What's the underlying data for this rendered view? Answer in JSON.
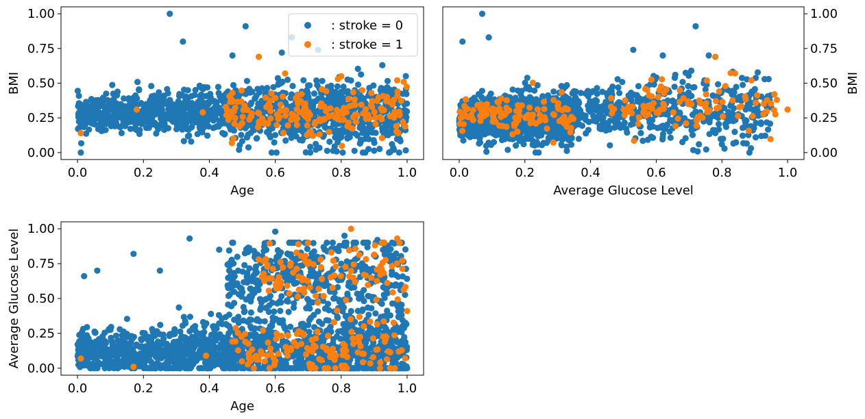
{
  "figure": {
    "legend": {
      "entries": [
        ": stroke = 0",
        ": stroke = 1"
      ]
    }
  },
  "chart_data": [
    {
      "type": "scatter",
      "xlabel": "Age",
      "ylabel": "BMI",
      "xlim": [
        -0.05,
        1.05
      ],
      "ylim": [
        -0.05,
        1.05
      ],
      "xticks": [
        "0.0",
        "0.2",
        "0.4",
        "0.6",
        "0.8",
        "1.0"
      ],
      "yticks": [
        "0.00",
        "0.25",
        "0.50",
        "0.75",
        "1.00"
      ],
      "yaxis_side": "left",
      "legend": "top-right",
      "series": [
        {
          "name": ": stroke = 0",
          "color": "#1f77b4",
          "cluster": {
            "x_range": [
              0.0,
              1.0
            ],
            "y_center": 0.28,
            "y_spread": 0.11,
            "count": 1400
          },
          "points": [
            [
              0.28,
              1.0
            ],
            [
              0.51,
              0.91
            ],
            [
              0.32,
              0.8
            ],
            [
              0.47,
              0.7
            ],
            [
              0.62,
              0.72
            ],
            [
              0.73,
              0.74
            ],
            [
              0.65,
              0.83
            ],
            [
              0.96,
              0.02
            ],
            [
              0.49,
              0.02
            ],
            [
              0.01,
              0.0
            ]
          ]
        },
        {
          "name": ": stroke = 1",
          "color": "#ff7f0e",
          "cluster": {
            "x_range": [
              0.45,
              1.0
            ],
            "y_center": 0.29,
            "y_spread": 0.08,
            "count": 180
          },
          "points": [
            [
              0.01,
              0.14
            ],
            [
              0.18,
              0.31
            ],
            [
              0.38,
              0.29
            ],
            [
              0.47,
              0.43
            ],
            [
              0.55,
              0.69
            ],
            [
              0.8,
              0.55
            ],
            [
              0.97,
              0.52
            ],
            [
              0.99,
              0.51
            ],
            [
              0.79,
              0.53
            ],
            [
              0.63,
              0.57
            ]
          ]
        }
      ]
    },
    {
      "type": "scatter",
      "xlabel": "Average Glucose Level",
      "ylabel": "BMI",
      "xlim": [
        -0.05,
        1.05
      ],
      "ylim": [
        -0.05,
        1.05
      ],
      "xticks": [
        "0.0",
        "0.2",
        "0.4",
        "0.6",
        "0.8",
        "1.0"
      ],
      "yticks": [
        "0.00",
        "0.25",
        "0.50",
        "0.75",
        "1.00"
      ],
      "yaxis_side": "right",
      "series": [
        {
          "name": ": stroke = 0",
          "color": "#1f77b4",
          "cluster": {
            "x_range": [
              0.0,
              0.35
            ],
            "y_center": 0.25,
            "y_spread": 0.12,
            "count": 1300,
            "x2_range": [
              0.35,
              0.95
            ],
            "y2_center": 0.3,
            "y2_spread": 0.12,
            "count2": 500
          },
          "points": [
            [
              0.07,
              1.0
            ],
            [
              0.72,
              0.91
            ],
            [
              0.09,
              0.83
            ],
            [
              0.01,
              0.8
            ],
            [
              0.53,
              0.74
            ],
            [
              0.62,
              0.7
            ],
            [
              0.76,
              0.7
            ],
            [
              0.8,
              0.06
            ],
            [
              0.73,
              0.06
            ]
          ]
        },
        {
          "name": ": stroke = 1",
          "color": "#ff7f0e",
          "cluster": {
            "x_range": [
              0.0,
              0.35
            ],
            "y_center": 0.27,
            "y_spread": 0.09,
            "count": 120,
            "x2_range": [
              0.45,
              0.98
            ],
            "y2_center": 0.33,
            "y2_spread": 0.09,
            "count2": 90
          },
          "points": [
            [
              1.0,
              0.31
            ],
            [
              0.96,
              0.42
            ],
            [
              0.78,
              0.69
            ],
            [
              0.84,
              0.57
            ],
            [
              0.89,
              0.52
            ],
            [
              0.61,
              0.45
            ]
          ]
        }
      ]
    },
    {
      "type": "scatter",
      "xlabel": "Age",
      "ylabel": "Average Glucose Level",
      "xlim": [
        -0.05,
        1.05
      ],
      "ylim": [
        -0.05,
        1.05
      ],
      "xticks": [
        "0.0",
        "0.2",
        "0.4",
        "0.6",
        "0.8",
        "1.0"
      ],
      "yticks": [
        "0.00",
        "0.25",
        "0.50",
        "0.75",
        "1.00"
      ],
      "yaxis_side": "left",
      "series": [
        {
          "name": ": stroke = 0",
          "color": "#1f77b4",
          "cluster": {
            "x_range": [
              0.0,
              1.0
            ],
            "y_center": 0.12,
            "y_spread": 0.13,
            "count": 1500,
            "x2_range": [
              0.45,
              1.0
            ],
            "y2_center": 0.65,
            "y2_spread": 0.16,
            "count2": 500
          },
          "points": [
            [
              0.34,
              0.93
            ],
            [
              0.6,
              0.98
            ],
            [
              0.43,
              0.85
            ],
            [
              0.17,
              0.82
            ],
            [
              0.02,
              0.66
            ],
            [
              0.06,
              0.7
            ],
            [
              0.25,
              0.7
            ],
            [
              0.81,
              0.95
            ],
            [
              0.91,
              0.92
            ]
          ]
        },
        {
          "name": ": stroke = 1",
          "color": "#ff7f0e",
          "cluster": {
            "x_range": [
              0.47,
              1.0
            ],
            "y_center": 0.13,
            "y_spread": 0.1,
            "count": 130,
            "x2_range": [
              0.55,
              1.0
            ],
            "y2_center": 0.7,
            "y2_spread": 0.12,
            "count2": 100
          },
          "points": [
            [
              0.83,
              1.0
            ],
            [
              0.01,
              0.07
            ],
            [
              0.17,
              0.01
            ],
            [
              0.39,
              0.09
            ],
            [
              0.55,
              0.78
            ],
            [
              0.67,
              0.89
            ],
            [
              0.97,
              0.93
            ],
            [
              1.0,
              0.41
            ]
          ]
        }
      ]
    }
  ]
}
